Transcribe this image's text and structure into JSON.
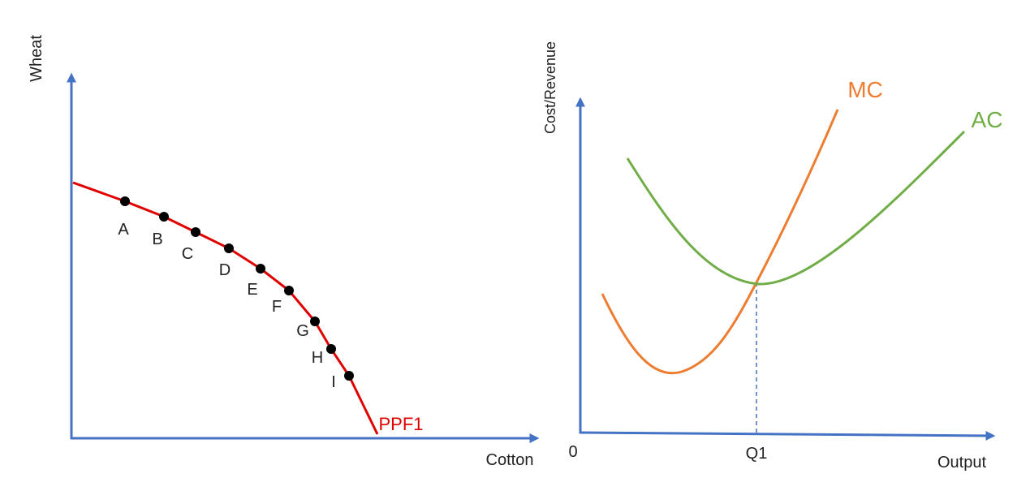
{
  "left": {
    "y_axis_label": "Wheat",
    "x_axis_label": "Cotton",
    "curve_label": "PPF1",
    "points": [
      "A",
      "B",
      "C",
      "D",
      "E",
      "F",
      "G",
      "H",
      "I"
    ]
  },
  "right": {
    "y_axis_label": "Cost/Revenue",
    "x_axis_label": "Output",
    "origin_label": "0",
    "q_label": "Q1",
    "curves": [
      "MC",
      "AC"
    ]
  }
}
